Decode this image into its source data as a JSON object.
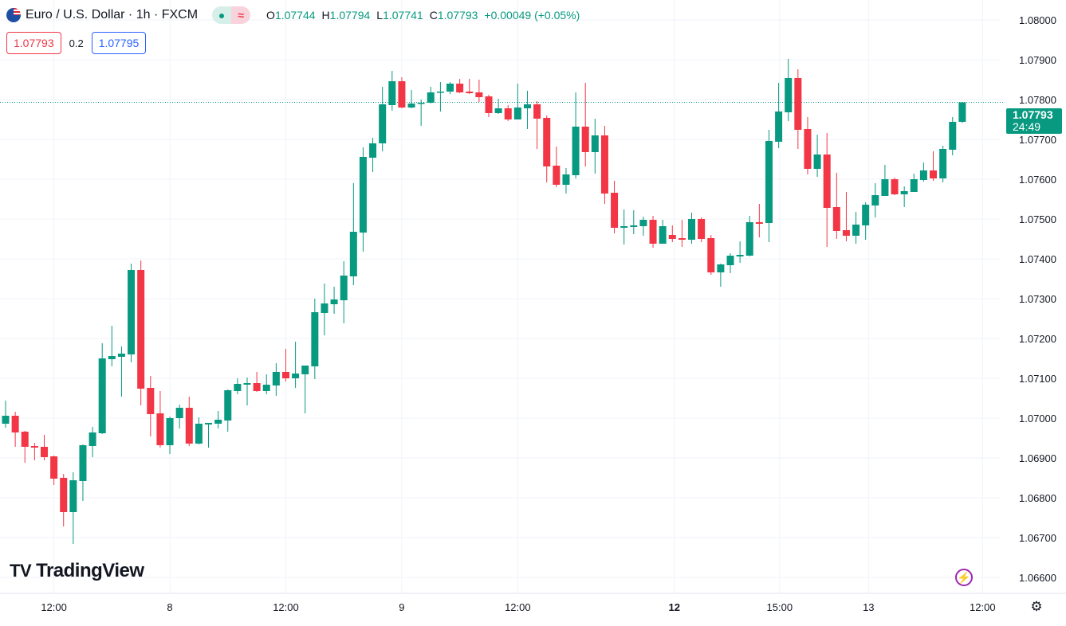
{
  "header": {
    "symbol_title": "Euro / U.S. Dollar · 1h · FXCM",
    "status_icon": "market-open-dot",
    "indicator_icon": "approx-icon",
    "ohlc": {
      "o_label": "O",
      "o": "1.07744",
      "h_label": "H",
      "h": "1.07794",
      "l_label": "L",
      "l": "1.07741",
      "c_label": "C",
      "c": "1.07793",
      "change": "+0.00049 (+0.05%)"
    }
  },
  "quotes": {
    "sell": "1.07793",
    "spread": "0.2",
    "buy": "1.07795"
  },
  "price_tag": {
    "price": "1.07793",
    "countdown": "24:49"
  },
  "branding": {
    "logo_mark": "TV",
    "logo_text": "TradingView"
  },
  "colors": {
    "up": "#089981",
    "down": "#f23645",
    "grid": "#f0f3fa",
    "accent_buy": "#2962ff"
  },
  "chart_data": {
    "type": "candlestick",
    "title": "Euro / U.S. Dollar · 1h · FXCM",
    "ylim": [
      1.0655,
      1.0805
    ],
    "grid": true,
    "y_ticks": [
      "1.08000",
      "1.07900",
      "1.07800",
      "1.07700",
      "1.07600",
      "1.07500",
      "1.07400",
      "1.07300",
      "1.07200",
      "1.07100",
      "1.07000",
      "1.06900",
      "1.06800",
      "1.06700",
      "1.06600"
    ],
    "x_ticks": [
      {
        "label": "12:00",
        "index": 5,
        "bold": false
      },
      {
        "label": "8",
        "index": 17,
        "bold": false
      },
      {
        "label": "12:00",
        "index": 29,
        "bold": false
      },
      {
        "label": "9",
        "index": 41,
        "bold": false
      },
      {
        "label": "12:00",
        "index": 53,
        "bold": false
      },
      {
        "label": "12",
        "index": 69.2,
        "bold": true
      },
      {
        "label": "15:00",
        "index": 80.1,
        "bold": false
      },
      {
        "label": "13",
        "index": 89.3,
        "bold": false
      },
      {
        "label": "12:00",
        "index": 101.1,
        "bold": false
      }
    ],
    "last_price": 1.07793,
    "candles_format": [
      "open",
      "high",
      "low",
      "close"
    ],
    "candles": [
      [
        1.06986,
        1.07044,
        1.06976,
        1.07006
      ],
      [
        1.07006,
        1.07016,
        1.06928,
        1.06964
      ],
      [
        1.06966,
        1.06968,
        1.06888,
        1.06928
      ],
      [
        1.0693,
        1.06938,
        1.06894,
        1.06926
      ],
      [
        1.06928,
        1.06958,
        1.06894,
        1.06902
      ],
      [
        1.06904,
        1.06906,
        1.06832,
        1.06848
      ],
      [
        1.0685,
        1.0686,
        1.06728,
        1.06764
      ],
      [
        1.06764,
        1.06864,
        1.06684,
        1.06844
      ],
      [
        1.06842,
        1.06934,
        1.06792,
        1.06932
      ],
      [
        1.0693,
        1.06978,
        1.06902,
        1.06964
      ],
      [
        1.06962,
        1.07188,
        1.0696,
        1.0715
      ],
      [
        1.07148,
        1.07232,
        1.0713,
        1.07156
      ],
      [
        1.07154,
        1.0718,
        1.07054,
        1.07162
      ],
      [
        1.0716,
        1.07388,
        1.0714,
        1.07372
      ],
      [
        1.07372,
        1.07396,
        1.07032,
        1.07074
      ],
      [
        1.07076,
        1.07106,
        1.06954,
        1.0701
      ],
      [
        1.07012,
        1.07068,
        1.06926,
        1.06932
      ],
      [
        1.06932,
        1.07004,
        1.0691,
        1.07
      ],
      [
        1.07,
        1.07034,
        1.06974,
        1.07026
      ],
      [
        1.07026,
        1.07054,
        1.0693,
        1.06936
      ],
      [
        1.06936,
        1.07002,
        1.06934,
        1.06986
      ],
      [
        1.06984,
        1.06988,
        1.06926,
        1.06988
      ],
      [
        1.06986,
        1.07018,
        1.06974,
        1.06996
      ],
      [
        1.06994,
        1.07072,
        1.06966,
        1.0707
      ],
      [
        1.07068,
        1.071,
        1.0706,
        1.07086
      ],
      [
        1.07084,
        1.07102,
        1.07032,
        1.07088
      ],
      [
        1.07088,
        1.07116,
        1.07066,
        1.07068
      ],
      [
        1.07068,
        1.0711,
        1.0706,
        1.07084
      ],
      [
        1.07082,
        1.07138,
        1.07056,
        1.07116
      ],
      [
        1.07116,
        1.07174,
        1.07092,
        1.071
      ],
      [
        1.071,
        1.07192,
        1.07076,
        1.07112
      ],
      [
        1.0711,
        1.07132,
        1.07012,
        1.07132
      ],
      [
        1.0713,
        1.073,
        1.07098,
        1.07266
      ],
      [
        1.07264,
        1.07338,
        1.07208,
        1.07288
      ],
      [
        1.07286,
        1.0733,
        1.07262,
        1.07298
      ],
      [
        1.07296,
        1.07394,
        1.07238,
        1.07358
      ],
      [
        1.07356,
        1.0759,
        1.07334,
        1.07468
      ],
      [
        1.07466,
        1.0768,
        1.07418,
        1.07656
      ],
      [
        1.07654,
        1.07704,
        1.07618,
        1.0769
      ],
      [
        1.0769,
        1.07832,
        1.0767,
        1.07788
      ],
      [
        1.07786,
        1.07872,
        1.07772,
        1.07846
      ],
      [
        1.07846,
        1.07856,
        1.07778,
        1.0778
      ],
      [
        1.0778,
        1.07824,
        1.07778,
        1.0779
      ],
      [
        1.0779,
        1.078,
        1.07734,
        1.07792
      ],
      [
        1.07792,
        1.07832,
        1.0779,
        1.07818
      ],
      [
        1.07818,
        1.07844,
        1.0777,
        1.0782
      ],
      [
        1.0782,
        1.07844,
        1.07814,
        1.0784
      ],
      [
        1.0784,
        1.07852,
        1.07816,
        1.07818
      ],
      [
        1.0782,
        1.07852,
        1.07814,
        1.07816
      ],
      [
        1.07818,
        1.0785,
        1.07794,
        1.07806
      ],
      [
        1.07808,
        1.07812,
        1.07756,
        1.07766
      ],
      [
        1.07766,
        1.07802,
        1.07764,
        1.07778
      ],
      [
        1.07778,
        1.07786,
        1.07746,
        1.0775
      ],
      [
        1.0775,
        1.0784,
        1.0775,
        1.0778
      ],
      [
        1.07778,
        1.07822,
        1.07726,
        1.07788
      ],
      [
        1.07788,
        1.07796,
        1.07676,
        1.07752
      ],
      [
        1.07754,
        1.0776,
        1.07592,
        1.07632
      ],
      [
        1.07634,
        1.07682,
        1.0758,
        1.07586
      ],
      [
        1.07586,
        1.07628,
        1.07564,
        1.07612
      ],
      [
        1.0761,
        1.07818,
        1.07602,
        1.07732
      ],
      [
        1.07732,
        1.07842,
        1.07632,
        1.07668
      ],
      [
        1.07668,
        1.07752,
        1.07614,
        1.0771
      ],
      [
        1.0771,
        1.07734,
        1.07538,
        1.07564
      ],
      [
        1.07566,
        1.07596,
        1.07464,
        1.07478
      ],
      [
        1.07478,
        1.07524,
        1.07436,
        1.07482
      ],
      [
        1.0748,
        1.07522,
        1.07462,
        1.07484
      ],
      [
        1.07482,
        1.07506,
        1.07458,
        1.07498
      ],
      [
        1.07498,
        1.07508,
        1.07428,
        1.07438
      ],
      [
        1.07438,
        1.07498,
        1.07438,
        1.07482
      ],
      [
        1.0746,
        1.07484,
        1.07442,
        1.0745
      ],
      [
        1.07452,
        1.07498,
        1.0743,
        1.07448
      ],
      [
        1.07448,
        1.07516,
        1.07438,
        1.075
      ],
      [
        1.075,
        1.07504,
        1.07442,
        1.0745
      ],
      [
        1.07452,
        1.0746,
        1.0736,
        1.07366
      ],
      [
        1.07366,
        1.07388,
        1.0733,
        1.07386
      ],
      [
        1.07384,
        1.07414,
        1.07364,
        1.07408
      ],
      [
        1.07406,
        1.07444,
        1.0739,
        1.0741
      ],
      [
        1.07408,
        1.07508,
        1.07406,
        1.07492
      ],
      [
        1.07492,
        1.07538,
        1.07454,
        1.07488
      ],
      [
        1.0749,
        1.07724,
        1.07442,
        1.07696
      ],
      [
        1.07694,
        1.07842,
        1.07678,
        1.0777
      ],
      [
        1.07768,
        1.07902,
        1.07746,
        1.07854
      ],
      [
        1.07854,
        1.07876,
        1.07676,
        1.07724
      ],
      [
        1.07726,
        1.07756,
        1.07612,
        1.07626
      ],
      [
        1.07626,
        1.07712,
        1.07606,
        1.07662
      ],
      [
        1.07662,
        1.07716,
        1.0743,
        1.07528
      ],
      [
        1.0753,
        1.07616,
        1.0745,
        1.0747
      ],
      [
        1.07472,
        1.07568,
        1.07444,
        1.07458
      ],
      [
        1.07458,
        1.07518,
        1.07438,
        1.07486
      ],
      [
        1.07484,
        1.07542,
        1.07448,
        1.07536
      ],
      [
        1.07534,
        1.0759,
        1.07504,
        1.0756
      ],
      [
        1.07558,
        1.07636,
        1.07558,
        1.076
      ],
      [
        1.076,
        1.07604,
        1.0756,
        1.07562
      ],
      [
        1.07562,
        1.07582,
        1.0753,
        1.0757
      ],
      [
        1.07568,
        1.07614,
        1.07568,
        1.076
      ],
      [
        1.07598,
        1.07642,
        1.07594,
        1.07622
      ],
      [
        1.07622,
        1.0767,
        1.07596,
        1.07602
      ],
      [
        1.07602,
        1.07684,
        1.07592,
        1.07676
      ],
      [
        1.07674,
        1.07756,
        1.0766,
        1.07744
      ],
      [
        1.07744,
        1.07794,
        1.07741,
        1.07793
      ]
    ]
  }
}
